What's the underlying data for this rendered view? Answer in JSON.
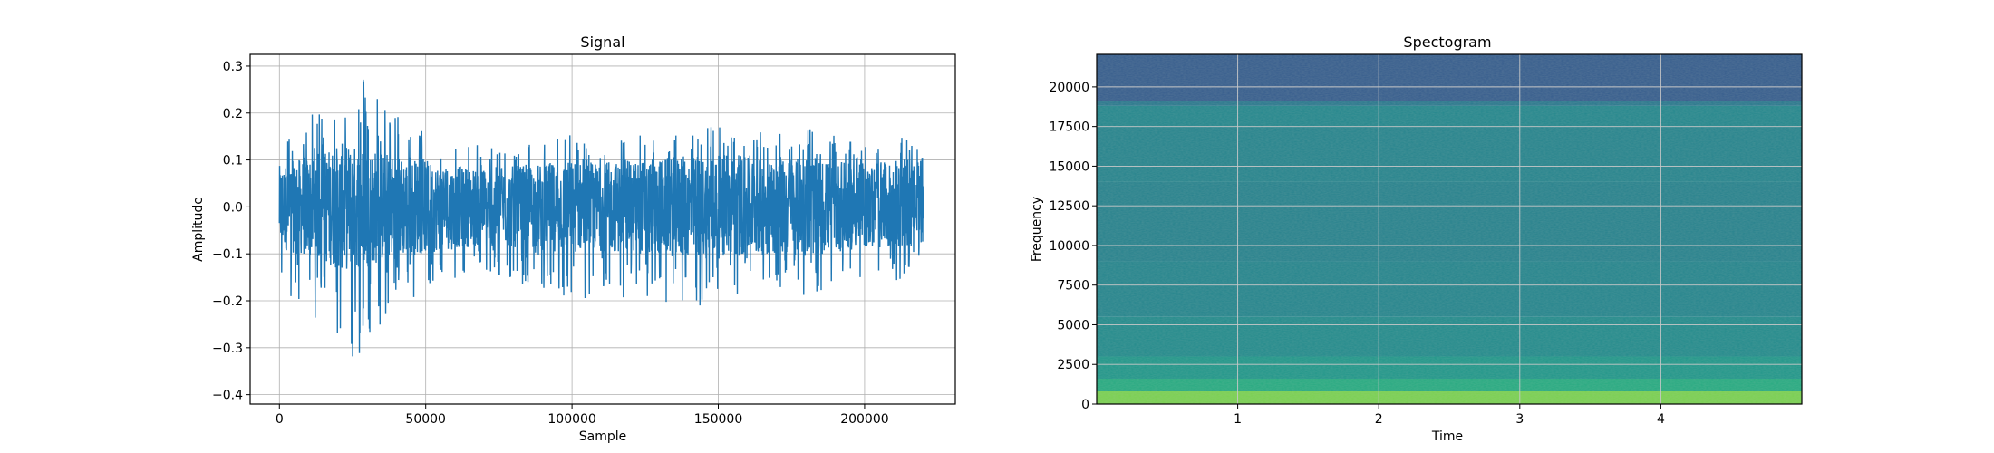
{
  "chart_data": [
    {
      "type": "line",
      "title": "Signal",
      "xlabel": "Sample",
      "ylabel": "Amplitude",
      "xlim": [
        -10000,
        231000
      ],
      "ylim": [
        -0.42,
        0.325
      ],
      "xticks": [
        0,
        50000,
        100000,
        150000,
        200000
      ],
      "xtick_labels": [
        "0",
        "50000",
        "100000",
        "150000",
        "200000"
      ],
      "yticks": [
        -0.4,
        -0.3,
        -0.2,
        -0.1,
        0.0,
        0.1,
        0.2,
        0.3
      ],
      "ytick_labels": [
        "−0.4",
        "−0.3",
        "−0.2",
        "−0.1",
        "0.0",
        "0.1",
        "0.2",
        "0.3"
      ],
      "grid": true,
      "color": "#1f77b4",
      "series": [
        {
          "x": [
            0,
            5000,
            10000,
            15000,
            20000,
            22000,
            25000,
            30000,
            35000,
            40000,
            45000,
            50000,
            60000,
            70000,
            80000,
            90000,
            100000,
            110000,
            120000,
            130000,
            140000,
            150000,
            160000,
            170000,
            180000,
            190000,
            200000,
            210000,
            220000
          ],
          "max": [
            0.18,
            0.17,
            0.19,
            0.22,
            0.27,
            0.28,
            0.26,
            0.29,
            0.24,
            0.2,
            0.18,
            0.16,
            0.14,
            0.13,
            0.14,
            0.15,
            0.16,
            0.14,
            0.15,
            0.17,
            0.18,
            0.18,
            0.17,
            0.16,
            0.18,
            0.15,
            0.13,
            0.15,
            0.14
          ],
          "min": [
            -0.18,
            -0.2,
            -0.22,
            -0.26,
            -0.3,
            -0.31,
            -0.38,
            -0.3,
            -0.26,
            -0.22,
            -0.2,
            -0.2,
            -0.16,
            -0.15,
            -0.16,
            -0.18,
            -0.21,
            -0.19,
            -0.2,
            -0.2,
            -0.22,
            -0.2,
            -0.18,
            -0.19,
            -0.2,
            -0.16,
            -0.15,
            -0.16,
            -0.16
          ],
          "rms": [
            0.04,
            0.045,
            0.05,
            0.055,
            0.06,
            0.062,
            0.06,
            0.058,
            0.055,
            0.05,
            0.048,
            0.045,
            0.04,
            0.038,
            0.04,
            0.042,
            0.045,
            0.043,
            0.045,
            0.047,
            0.05,
            0.05,
            0.048,
            0.046,
            0.048,
            0.044,
            0.04,
            0.042,
            0.04
          ]
        }
      ]
    },
    {
      "type": "heatmap",
      "title": "Spectogram",
      "xlabel": "Time",
      "ylabel": "Frequency",
      "xlim": [
        0,
        5.0
      ],
      "ylim": [
        0,
        22050
      ],
      "xticks": [
        1,
        2,
        3,
        4
      ],
      "xtick_labels": [
        "1",
        "2",
        "3",
        "4"
      ],
      "yticks": [
        0,
        2500,
        5000,
        7500,
        10000,
        12500,
        15000,
        17500,
        20000
      ],
      "ytick_labels": [
        "0",
        "2500",
        "5000",
        "7500",
        "10000",
        "12500",
        "15000",
        "17500",
        "20000"
      ],
      "grid": true,
      "colormap": "viridis",
      "frequency_bands": [
        {
          "from": 0,
          "to": 800,
          "level": 0.88
        },
        {
          "from": 800,
          "to": 1600,
          "level": 0.76
        },
        {
          "from": 1600,
          "to": 3000,
          "level": 0.66
        },
        {
          "from": 3000,
          "to": 5500,
          "level": 0.6
        },
        {
          "from": 5500,
          "to": 9000,
          "level": 0.57
        },
        {
          "from": 9000,
          "to": 14000,
          "level": 0.55
        },
        {
          "from": 14000,
          "to": 17500,
          "level": 0.56
        },
        {
          "from": 17500,
          "to": 18800,
          "level": 0.58
        },
        {
          "from": 18800,
          "to": 19100,
          "level": 0.5
        },
        {
          "from": 19100,
          "to": 22050,
          "level": 0.37
        }
      ]
    }
  ]
}
